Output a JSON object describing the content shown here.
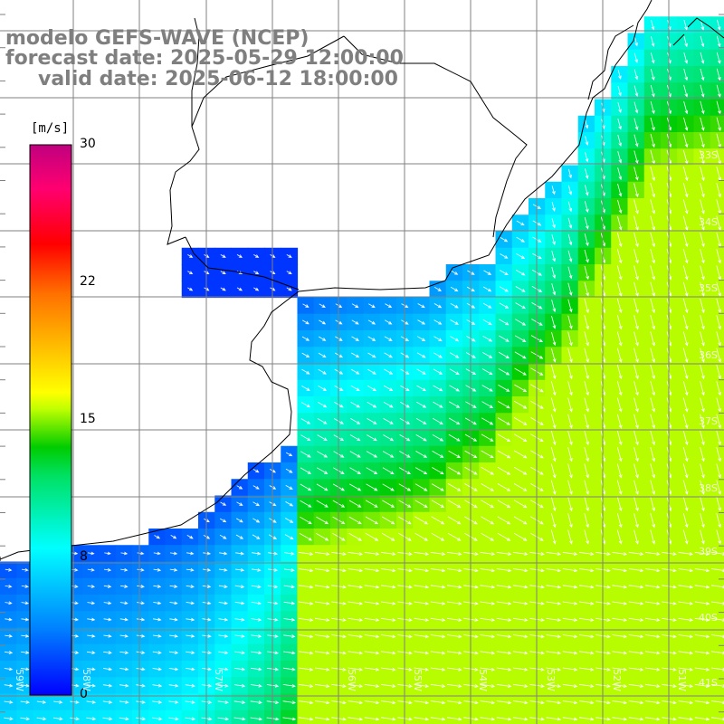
{
  "titles": {
    "model": "modelo GEFS-WAVE (NCEP)",
    "forecast": "forecast date: 2025-05-29 12:00:00",
    "valid": "valid date: 2025-06-12 18:00:00"
  },
  "colorbar": {
    "units": "[m/s]",
    "ticks": [
      "30",
      "22",
      "15",
      "8",
      "0"
    ],
    "tick_values": [
      30,
      22,
      15,
      8,
      0
    ],
    "range": [
      0,
      30
    ],
    "colors": [
      "#0000ff",
      "#00a0ff",
      "#00ffff",
      "#00ff80",
      "#00dd00",
      "#80ff00",
      "#ffff00",
      "#ff8000",
      "#ff0000",
      "#ff0080",
      "#c0007f"
    ]
  },
  "grid_labels": {
    "lat": [
      "33S",
      "34S",
      "35S",
      "36S",
      "37S",
      "38S",
      "39S",
      "40S",
      "41S"
    ],
    "lon": [
      "59W",
      "58W",
      "57W",
      "56W",
      "55W",
      "54W",
      "53W",
      "52W",
      "51W"
    ]
  },
  "colors": {
    "land": "#ffffff",
    "grid": "#808080",
    "coast": "#000000",
    "arrows": "#ffffff",
    "title": "#7f7f7f"
  }
}
